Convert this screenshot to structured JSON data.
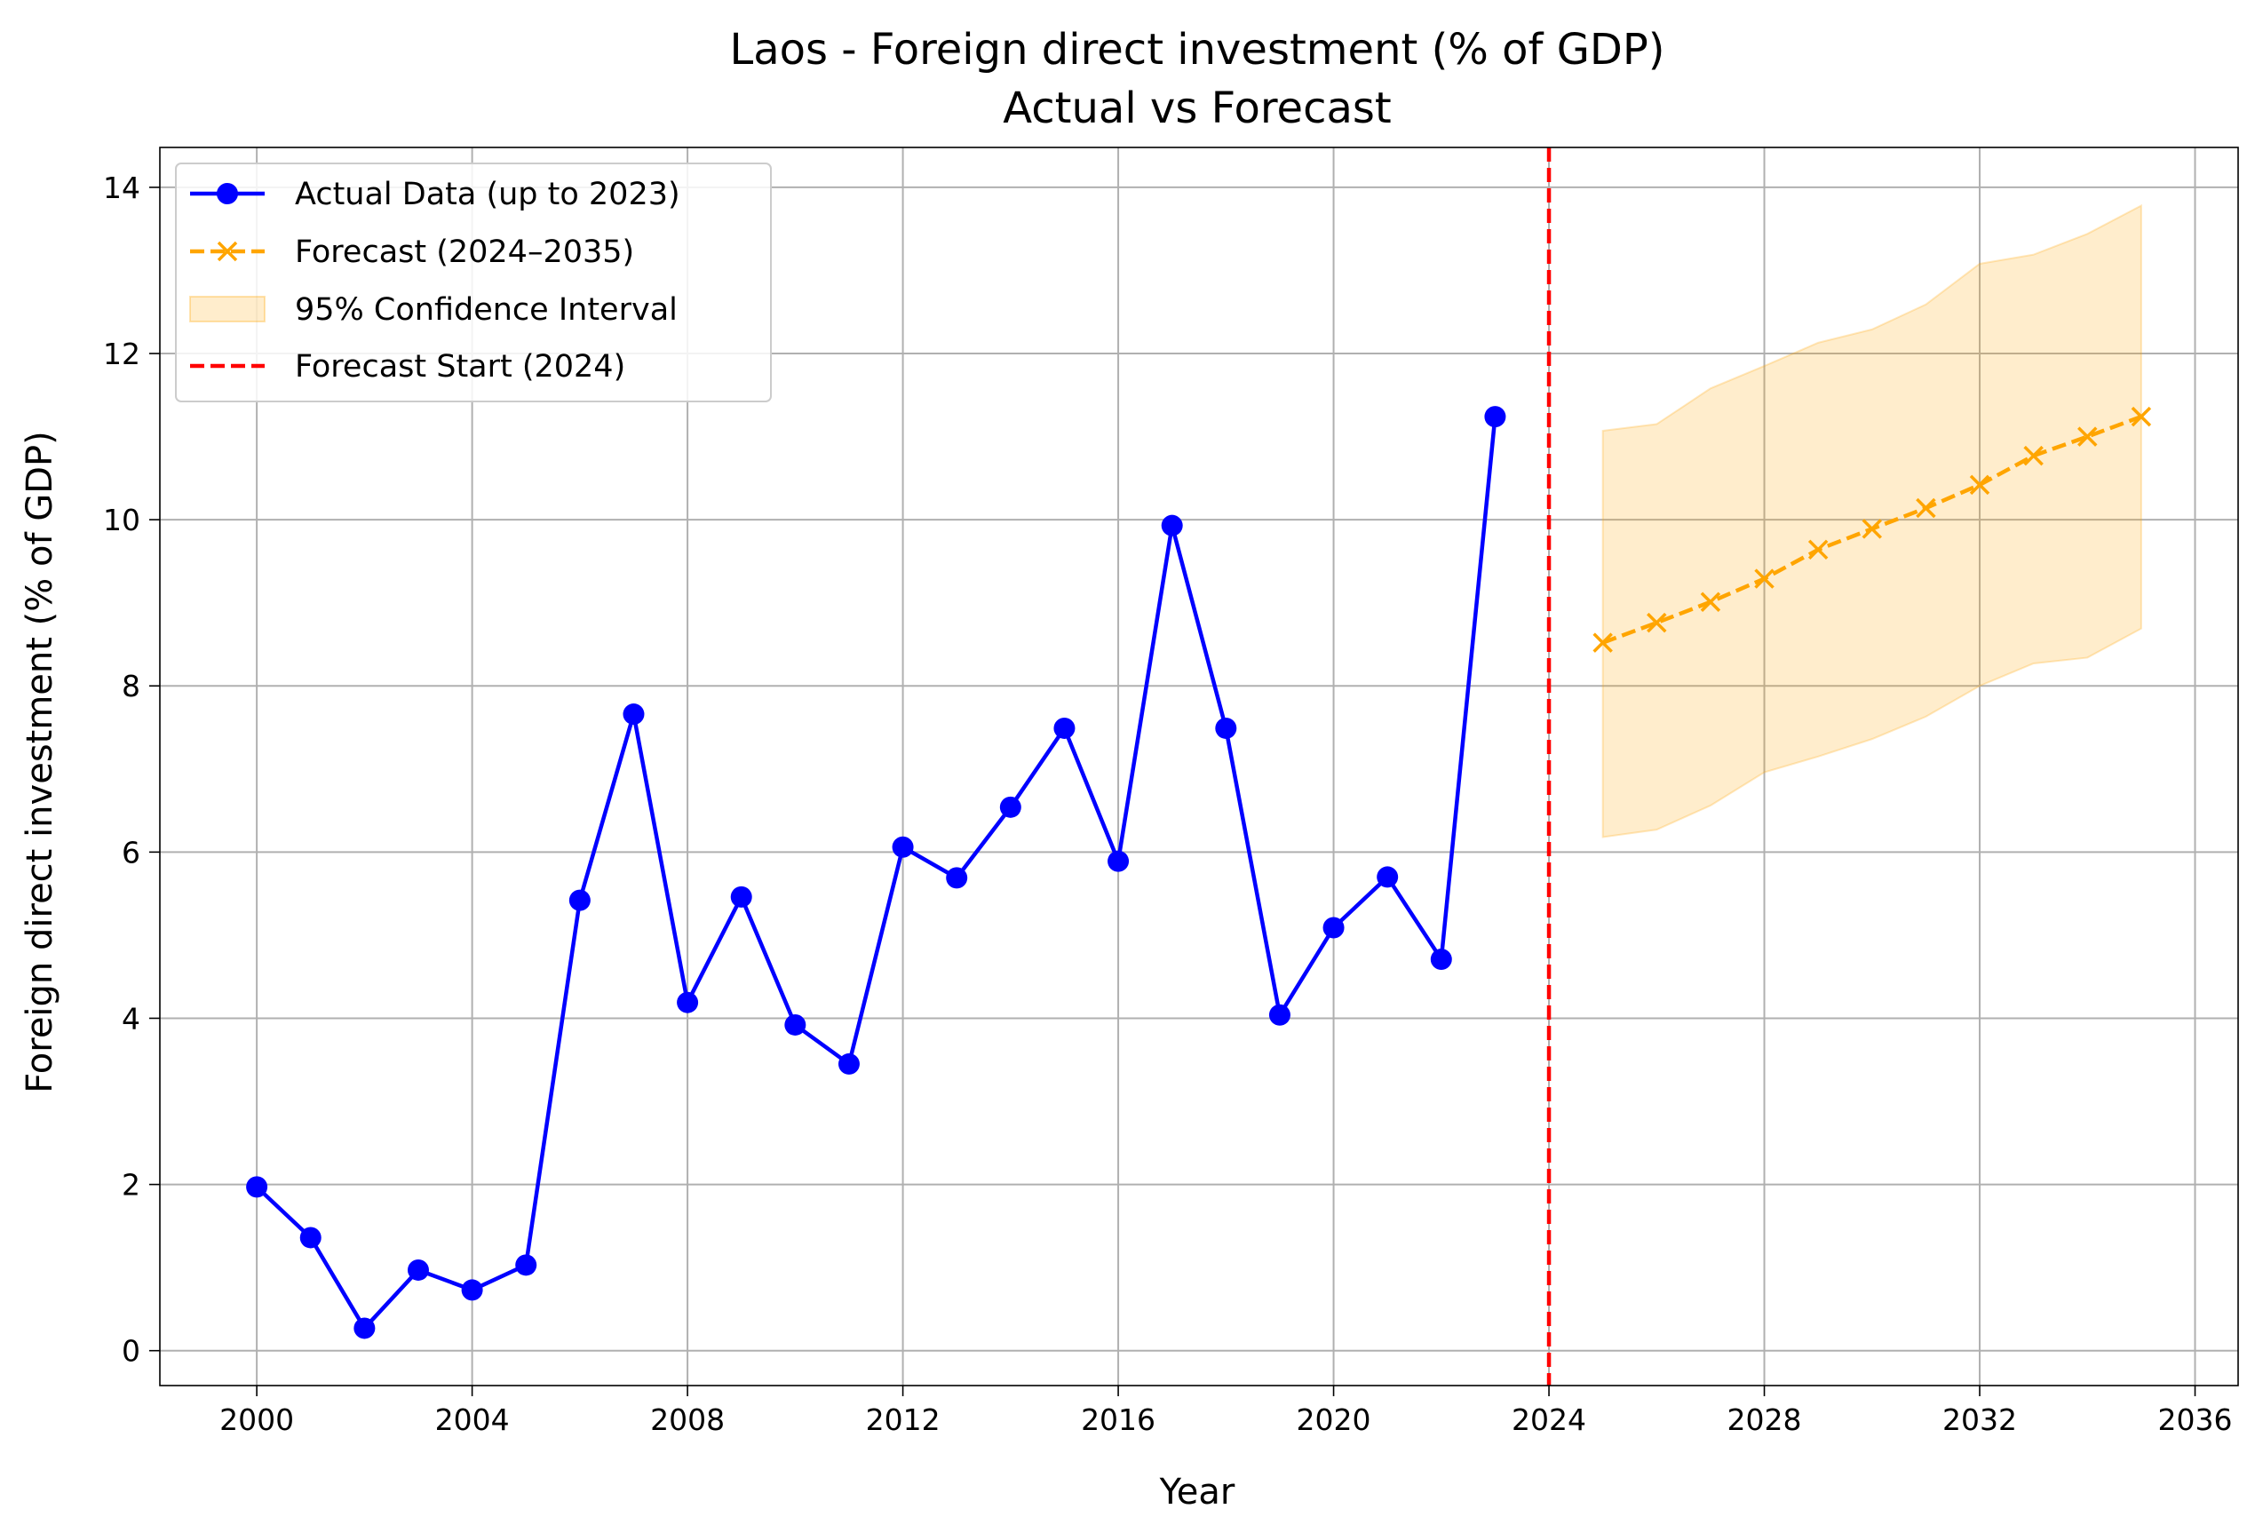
{
  "chart_data": {
    "type": "line",
    "title": "Laos - Foreign direct investment (% of GDP)",
    "subtitle": "Actual vs Forecast",
    "xlabel": "Year",
    "ylabel": "Foreign direct investment (% of GDP)",
    "xlim": [
      1998.2,
      2036.8
    ],
    "ylim": [
      -0.42,
      14.48
    ],
    "x_ticks": [
      "2000",
      "2004",
      "2008",
      "2012",
      "2016",
      "2020",
      "2024",
      "2028",
      "2032",
      "2036"
    ],
    "y_ticks": [
      "0",
      "2",
      "4",
      "6",
      "8",
      "10",
      "12",
      "14"
    ],
    "grid": true,
    "legend_position": "upper-left",
    "legend": [
      "Actual Data (up to 2023)",
      "Forecast (2024–2035)",
      "95% Confidence Interval",
      "Forecast Start (2024)"
    ],
    "series": [
      {
        "name": "Actual Data (up to 2023)",
        "color": "#0000ff",
        "marker": "circle",
        "line_style": "solid",
        "x": [
          2000,
          2001,
          2002,
          2003,
          2004,
          2005,
          2006,
          2007,
          2008,
          2009,
          2010,
          2011,
          2012,
          2013,
          2014,
          2015,
          2016,
          2017,
          2018,
          2019,
          2020,
          2021,
          2022,
          2023
        ],
        "y": [
          1.97,
          1.36,
          0.27,
          0.97,
          0.73,
          1.03,
          5.42,
          7.66,
          4.19,
          5.46,
          3.92,
          3.45,
          6.06,
          5.69,
          6.54,
          7.49,
          5.89,
          9.93,
          7.49,
          4.04,
          5.09,
          5.7,
          4.71,
          11.24
        ]
      },
      {
        "name": "Forecast (2024–2035)",
        "color": "#ffa500",
        "marker": "x",
        "line_style": "dashed",
        "x": [
          2025,
          2026,
          2027,
          2028,
          2029,
          2030,
          2031,
          2032,
          2033,
          2034,
          2035
        ],
        "y": [
          8.52,
          8.76,
          9.01,
          9.29,
          9.64,
          9.89,
          10.14,
          10.42,
          10.77,
          11.0,
          11.24
        ]
      }
    ],
    "confidence_interval": {
      "name": "95% Confidence Interval",
      "color": "#ffa500",
      "x": [
        2025,
        2026,
        2027,
        2028,
        2029,
        2030,
        2031,
        2032,
        2033,
        2034,
        2035
      ],
      "lower": [
        6.18,
        6.27,
        6.56,
        6.96,
        7.15,
        7.36,
        7.63,
        8.0,
        8.27,
        8.34,
        8.69
      ],
      "upper": [
        11.07,
        11.15,
        11.58,
        11.85,
        12.13,
        12.29,
        12.59,
        13.08,
        13.19,
        13.44,
        13.78
      ]
    },
    "vline": {
      "name": "Forecast Start (2024)",
      "x": 2024,
      "color": "#ff0000",
      "line_style": "dashed"
    }
  }
}
